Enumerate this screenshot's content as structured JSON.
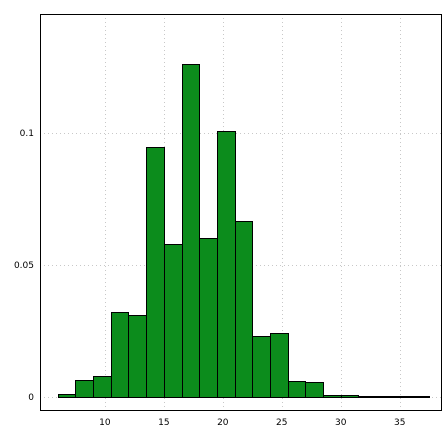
{
  "chart_data": {
    "type": "bar",
    "title": "",
    "xlabel": "",
    "ylabel": "",
    "xlim": [
      4.5,
      38.5
    ],
    "ylim": [
      -0.005,
      0.145
    ],
    "x_ticks": [
      10,
      15,
      20,
      25,
      30,
      35
    ],
    "y_ticks": [
      0,
      0.05,
      0.1
    ],
    "x_tick_labels": [
      "10",
      "15",
      "20",
      "25",
      "30",
      "35"
    ],
    "y_tick_labels": [
      "0",
      "0.05",
      "0.1"
    ],
    "grid": true,
    "legend": "none",
    "bar_color": "#0c8c1c",
    "bins": [
      {
        "x0": 6,
        "x1": 7.5,
        "value": 0.001
      },
      {
        "x0": 7.5,
        "x1": 9,
        "value": 0.0062
      },
      {
        "x0": 9,
        "x1": 10.5,
        "value": 0.0079
      },
      {
        "x0": 10.5,
        "x1": 12,
        "value": 0.0323
      },
      {
        "x0": 12,
        "x1": 13.5,
        "value": 0.031
      },
      {
        "x0": 13.5,
        "x1": 15,
        "value": 0.0945
      },
      {
        "x0": 15,
        "x1": 16.5,
        "value": 0.058
      },
      {
        "x0": 16.5,
        "x1": 18,
        "value": 0.126
      },
      {
        "x0": 18,
        "x1": 19.5,
        "value": 0.06
      },
      {
        "x0": 19.5,
        "x1": 21,
        "value": 0.1005
      },
      {
        "x0": 21,
        "x1": 22.5,
        "value": 0.0665
      },
      {
        "x0": 22.5,
        "x1": 24,
        "value": 0.023
      },
      {
        "x0": 24,
        "x1": 25.5,
        "value": 0.024
      },
      {
        "x0": 25.5,
        "x1": 27,
        "value": 0.0058
      },
      {
        "x0": 27,
        "x1": 28.5,
        "value": 0.0055
      },
      {
        "x0": 28.5,
        "x1": 30,
        "value": 0.0006
      },
      {
        "x0": 30,
        "x1": 31.5,
        "value": 0.0008
      },
      {
        "x0": 31.5,
        "x1": 33,
        "value": 0.0001
      },
      {
        "x0": 33,
        "x1": 34.5,
        "value": 0.0001
      },
      {
        "x0": 34.5,
        "x1": 36,
        "value": 0.0001
      },
      {
        "x0": 36,
        "x1": 37.5,
        "value": 0.0001
      }
    ]
  }
}
